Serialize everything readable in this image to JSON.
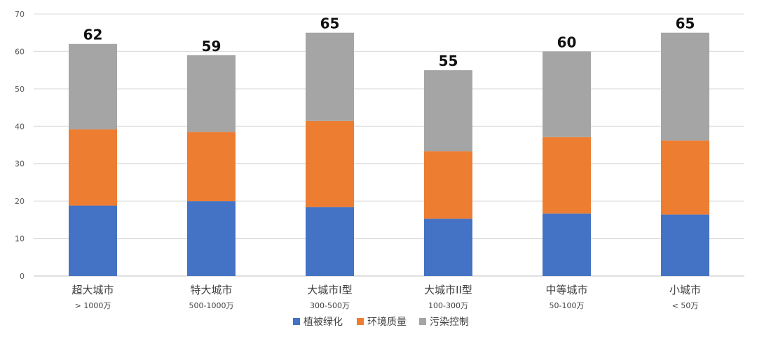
{
  "chart_data": {
    "type": "bar",
    "stacked": true,
    "categories": [
      {
        "label": "超大城市",
        "sublabel": "> 1000万"
      },
      {
        "label": "特大城市",
        "sublabel": "500-1000万"
      },
      {
        "label": "大城市I型",
        "sublabel": "300-500万"
      },
      {
        "label": "大城市II型",
        "sublabel": "100-300万"
      },
      {
        "label": "中等城市",
        "sublabel": "50-100万"
      },
      {
        "label": "小城市",
        "sublabel": "< 50万"
      }
    ],
    "series": [
      {
        "name": "植被绿化",
        "color": "#4472C4",
        "values": [
          18.8,
          20.0,
          18.4,
          15.3,
          16.7,
          16.4
        ]
      },
      {
        "name": "环境质量",
        "color": "#ED7D31",
        "values": [
          20.4,
          18.5,
          23.0,
          18.0,
          20.4,
          19.8
        ]
      },
      {
        "name": "污染控制",
        "color": "#A5A5A5",
        "values": [
          22.8,
          20.5,
          23.6,
          21.7,
          22.9,
          28.8
        ]
      }
    ],
    "totals": [
      62,
      59,
      65,
      55,
      60,
      65
    ],
    "ylim": [
      0,
      70
    ],
    "yticks": [
      0,
      10,
      20,
      30,
      40,
      50,
      60,
      70
    ],
    "grid": true,
    "legend_position": "bottom"
  }
}
